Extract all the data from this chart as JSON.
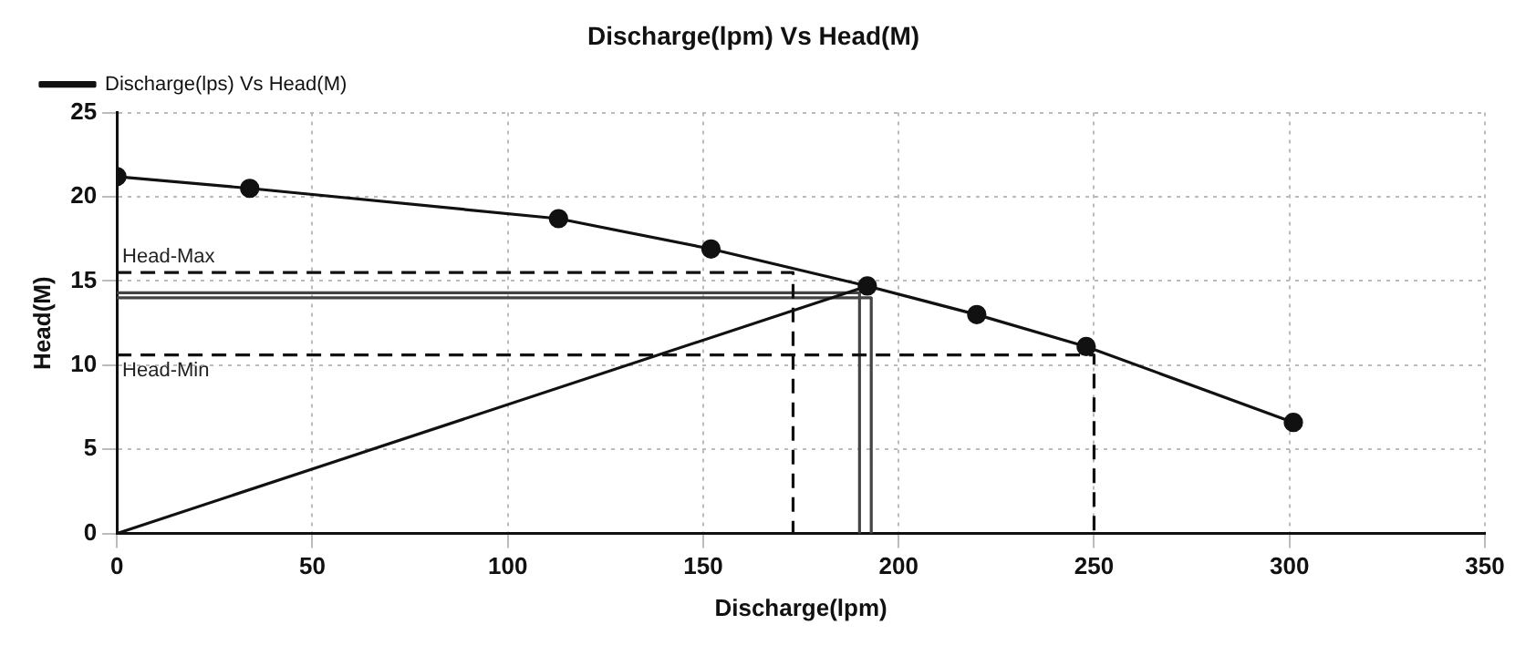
{
  "chart_data": {
    "type": "line",
    "title": "Discharge(lpm) Vs Head(M)",
    "xlabel": "Discharge(lpm)",
    "ylabel": "Head(M)",
    "xlim": [
      0,
      350
    ],
    "xticks": [
      0,
      50,
      100,
      150,
      200,
      250,
      300,
      350
    ],
    "ylim": [
      0,
      25
    ],
    "yticks": [
      0,
      5,
      10,
      15,
      20,
      25
    ],
    "grid": true,
    "legend": "top left",
    "series": [
      {
        "name": "Discharge(lps) Vs Head(M)",
        "color": "#111111",
        "marker": "circle",
        "line_style": "solid",
        "x": [
          0,
          34,
          113,
          152,
          192,
          220,
          248,
          301
        ],
        "values": [
          21.2,
          20.5,
          18.7,
          16.9,
          14.7,
          13.0,
          11.1,
          6.6
        ]
      },
      {
        "color": "#111111",
        "marker": "none",
        "line_style": "solid",
        "x": [
          0,
          192
        ],
        "values": [
          0,
          14.7
        ]
      },
      {
        "color": "#111111",
        "marker": "none",
        "line_style": "dashed",
        "x": [
          0,
          173,
          173
        ],
        "values": [
          15.5,
          15.5,
          0
        ]
      },
      {
        "color": "#111111",
        "marker": "none",
        "line_style": "dashed",
        "x": [
          0,
          250,
          250
        ],
        "values": [
          10.6,
          10.6,
          0
        ]
      },
      {
        "color": "#444444",
        "marker": "none",
        "line_style": "solid",
        "x": [
          0,
          190,
          190
        ],
        "values": [
          14.3,
          14.3,
          0
        ]
      },
      {
        "color": "#444444",
        "marker": "none",
        "line_style": "solid",
        "x": [
          0,
          193,
          193
        ],
        "values": [
          14.0,
          14.0,
          0
        ]
      }
    ],
    "annotations": [
      {
        "text": "Head-Max",
        "x": 0,
        "y": 15.5
      },
      {
        "text": "Head-Min",
        "x": 0,
        "y": 10.6
      }
    ]
  }
}
